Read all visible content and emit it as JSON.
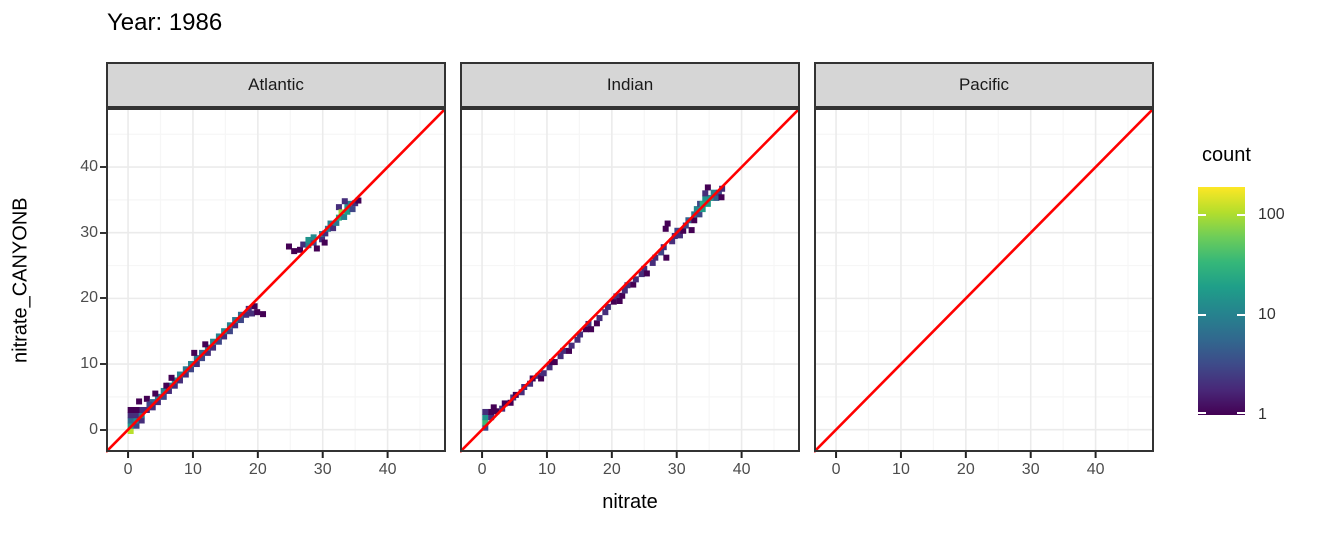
{
  "title": "Year: 1986",
  "axes": {
    "x_title": "nitrate",
    "y_title": "nitrate_CANYONB"
  },
  "legend": {
    "title": "count",
    "tick_values": [
      100,
      10,
      1
    ],
    "tick_labels": [
      "100",
      "10",
      "1"
    ]
  },
  "colors": {
    "reference_line": "#FF0000",
    "strip_bg": "#D6D6D6",
    "panel_border": "#333333",
    "grid_major": "#EBEBEB",
    "grid_minor": "#F6F6F6",
    "tick_label": "#4D4D4D",
    "viridis": [
      "#440154",
      "#482878",
      "#3E4A89",
      "#31688E",
      "#26828E",
      "#1F9E89",
      "#35B779",
      "#6DCD59",
      "#B4DE2C",
      "#FDE725"
    ]
  },
  "chart_data": {
    "type": "heatmap",
    "subtype": "geom_bin2d",
    "title": "Year: 1986",
    "xlabel": "nitrate",
    "ylabel": "nitrate_CANYONB",
    "xlim": [
      -3.4,
      49.0
    ],
    "ylim": [
      -3.4,
      49.0
    ],
    "x_ticks": [
      0,
      10,
      20,
      30,
      40
    ],
    "y_ticks": [
      0,
      10,
      20,
      30,
      40
    ],
    "minor_ticks": [
      5,
      15,
      25,
      35,
      45
    ],
    "grid": true,
    "legend_position": "right",
    "reference_line": {
      "slope": 1,
      "intercept": 0,
      "color": "#FF0000"
    },
    "color_scale": {
      "name": "viridis",
      "trans": "log10",
      "domain": [
        1,
        190
      ],
      "legend_title": "count",
      "legend_ticks": [
        1,
        10,
        100
      ]
    },
    "facets": [
      {
        "label": "Atlantic",
        "bins": [
          [
            0.4,
            -0.2,
            110
          ],
          [
            0.4,
            0.6,
            18
          ],
          [
            0.4,
            1.4,
            6
          ],
          [
            0.4,
            2.2,
            2
          ],
          [
            1.3,
            0.6,
            3
          ],
          [
            1.3,
            1.4,
            12
          ],
          [
            1.3,
            2.2,
            2
          ],
          [
            2.1,
            1.4,
            2
          ],
          [
            2.1,
            2.2,
            8
          ],
          [
            2.1,
            3.0,
            2
          ],
          [
            1.3,
            3.0,
            1
          ],
          [
            0.4,
            3.0,
            1
          ],
          [
            2.9,
            3.0,
            2
          ],
          [
            1.7,
            4.3,
            1
          ],
          [
            2.9,
            4.7,
            1
          ],
          [
            3.8,
            3.4,
            2
          ],
          [
            3.8,
            4.2,
            6
          ],
          [
            3.3,
            3.8,
            3
          ],
          [
            4.6,
            4.2,
            2
          ],
          [
            4.6,
            5.0,
            8
          ],
          [
            5.5,
            5.0,
            3
          ],
          [
            5.5,
            5.9,
            10
          ],
          [
            4.2,
            5.5,
            1
          ],
          [
            6.3,
            5.9,
            2
          ],
          [
            6.3,
            6.7,
            10
          ],
          [
            5.9,
            6.7,
            1
          ],
          [
            7.2,
            6.7,
            2
          ],
          [
            7.2,
            7.5,
            12
          ],
          [
            6.7,
            7.9,
            1
          ],
          [
            8.0,
            7.5,
            2
          ],
          [
            8.0,
            8.4,
            10
          ],
          [
            8.9,
            8.4,
            2
          ],
          [
            8.9,
            9.2,
            8
          ],
          [
            9.7,
            9.2,
            3
          ],
          [
            9.7,
            10.0,
            10
          ],
          [
            10.6,
            10.0,
            2
          ],
          [
            10.6,
            10.9,
            8
          ],
          [
            11.4,
            10.9,
            3
          ],
          [
            11.4,
            11.7,
            6
          ],
          [
            10.2,
            11.7,
            1
          ],
          [
            12.3,
            11.7,
            2
          ],
          [
            12.3,
            12.5,
            10
          ],
          [
            11.9,
            13.0,
            1
          ],
          [
            13.1,
            12.5,
            2
          ],
          [
            13.1,
            13.4,
            12
          ],
          [
            14.0,
            13.4,
            3
          ],
          [
            14.0,
            14.2,
            10
          ],
          [
            14.8,
            14.2,
            2
          ],
          [
            14.8,
            15.0,
            12
          ],
          [
            15.7,
            15.0,
            3
          ],
          [
            15.7,
            15.9,
            10
          ],
          [
            16.5,
            15.9,
            2
          ],
          [
            16.5,
            16.7,
            8
          ],
          [
            17.4,
            16.7,
            3
          ],
          [
            17.4,
            17.5,
            6
          ],
          [
            18.2,
            17.5,
            2
          ],
          [
            19.1,
            17.7,
            2
          ],
          [
            19.9,
            17.9,
            1
          ],
          [
            20.8,
            17.6,
            1
          ],
          [
            18.6,
            18.4,
            2
          ],
          [
            19.5,
            18.8,
            1
          ],
          [
            24.8,
            27.9,
            1
          ],
          [
            25.6,
            27.2,
            1
          ],
          [
            26.5,
            27.4,
            1
          ],
          [
            27.0,
            28.2,
            2
          ],
          [
            27.8,
            28.1,
            10
          ],
          [
            27.8,
            28.9,
            15
          ],
          [
            28.6,
            28.5,
            3
          ],
          [
            28.6,
            29.3,
            12
          ],
          [
            29.1,
            27.6,
            1
          ],
          [
            29.9,
            29.0,
            2
          ],
          [
            29.9,
            29.8,
            8
          ],
          [
            30.3,
            28.5,
            1
          ],
          [
            30.4,
            29.9,
            2
          ],
          [
            30.8,
            30.6,
            8
          ],
          [
            31.2,
            31.4,
            10
          ],
          [
            31.6,
            30.7,
            2
          ],
          [
            32.1,
            31.5,
            8
          ],
          [
            32.5,
            32.3,
            25
          ],
          [
            32.5,
            33.9,
            2
          ],
          [
            32.9,
            33.1,
            90
          ],
          [
            33.3,
            32.4,
            10
          ],
          [
            33.8,
            33.2,
            18
          ],
          [
            33.8,
            34.0,
            15
          ],
          [
            34.2,
            34.4,
            10
          ],
          [
            34.6,
            33.6,
            3
          ],
          [
            35.0,
            34.5,
            2
          ],
          [
            33.4,
            34.8,
            2
          ],
          [
            35.5,
            34.9,
            1
          ]
        ]
      },
      {
        "label": "Indian",
        "bins": [
          [
            0.5,
            0.3,
            3
          ],
          [
            0.5,
            1.1,
            35
          ],
          [
            0.5,
            1.9,
            15
          ],
          [
            0.5,
            2.7,
            2
          ],
          [
            1.4,
            1.9,
            2
          ],
          [
            1.4,
            2.7,
            1
          ],
          [
            1.8,
            3.4,
            1
          ],
          [
            2.2,
            2.8,
            1
          ],
          [
            3.1,
            3.2,
            2
          ],
          [
            3.5,
            4.0,
            1
          ],
          [
            4.4,
            4.1,
            1
          ],
          [
            4.8,
            4.9,
            2
          ],
          [
            5.2,
            5.3,
            1
          ],
          [
            6.1,
            5.7,
            2
          ],
          [
            6.5,
            6.5,
            2
          ],
          [
            7.4,
            7.0,
            2
          ],
          [
            7.8,
            7.8,
            1
          ],
          [
            8.7,
            8.2,
            2
          ],
          [
            9.1,
            7.8,
            1
          ],
          [
            9.5,
            8.6,
            2
          ],
          [
            10.4,
            9.5,
            2
          ],
          [
            10.8,
            10.3,
            1
          ],
          [
            11.2,
            10.3,
            1
          ],
          [
            12.1,
            11.2,
            2
          ],
          [
            12.5,
            12.0,
            2
          ],
          [
            13.4,
            12.0,
            1
          ],
          [
            13.8,
            12.8,
            2
          ],
          [
            14.7,
            13.7,
            2
          ],
          [
            15.1,
            14.5,
            2
          ],
          [
            16.0,
            15.3,
            1
          ],
          [
            16.4,
            16.1,
            2
          ],
          [
            16.8,
            15.3,
            1
          ],
          [
            17.7,
            16.2,
            1
          ],
          [
            18.1,
            17.0,
            2
          ],
          [
            19.0,
            17.9,
            2
          ],
          [
            19.4,
            18.7,
            2
          ],
          [
            20.3,
            19.5,
            1
          ],
          [
            20.7,
            20.3,
            2
          ],
          [
            21.2,
            19.6,
            1
          ],
          [
            21.6,
            20.4,
            1
          ],
          [
            22.0,
            21.2,
            2
          ],
          [
            22.4,
            22.0,
            2
          ],
          [
            23.3,
            22.1,
            1
          ],
          [
            23.7,
            22.9,
            2
          ],
          [
            24.6,
            23.7,
            2
          ],
          [
            25.0,
            24.5,
            2
          ],
          [
            25.4,
            23.8,
            1
          ],
          [
            26.3,
            25.4,
            2
          ],
          [
            26.7,
            26.2,
            2
          ],
          [
            27.6,
            27.0,
            3
          ],
          [
            28.0,
            27.8,
            2
          ],
          [
            28.4,
            26.2,
            1
          ],
          [
            28.3,
            30.6,
            1
          ],
          [
            28.6,
            31.4,
            1
          ],
          [
            29.3,
            28.7,
            2
          ],
          [
            29.7,
            29.5,
            2
          ],
          [
            30.1,
            30.3,
            3
          ],
          [
            30.5,
            29.6,
            2
          ],
          [
            31.0,
            30.3,
            1
          ],
          [
            31.4,
            31.1,
            3
          ],
          [
            31.8,
            31.9,
            5
          ],
          [
            32.3,
            30.4,
            1
          ],
          [
            32.7,
            31.9,
            1
          ],
          [
            32.7,
            32.8,
            8
          ],
          [
            33.1,
            33.6,
            12
          ],
          [
            33.5,
            32.8,
            3
          ],
          [
            33.6,
            34.4,
            3
          ],
          [
            34.0,
            33.6,
            18
          ],
          [
            34.0,
            34.4,
            25
          ],
          [
            34.4,
            35.2,
            15
          ],
          [
            34.8,
            34.4,
            18
          ],
          [
            34.8,
            36.9,
            1
          ],
          [
            35.2,
            35.3,
            15
          ],
          [
            35.7,
            36.1,
            10
          ],
          [
            36.1,
            35.3,
            5
          ],
          [
            36.5,
            36.1,
            3
          ],
          [
            34.4,
            36.0,
            2
          ],
          [
            36.9,
            35.4,
            1
          ],
          [
            37.0,
            36.7,
            2
          ]
        ]
      },
      {
        "label": "Pacific",
        "bins": []
      }
    ]
  }
}
